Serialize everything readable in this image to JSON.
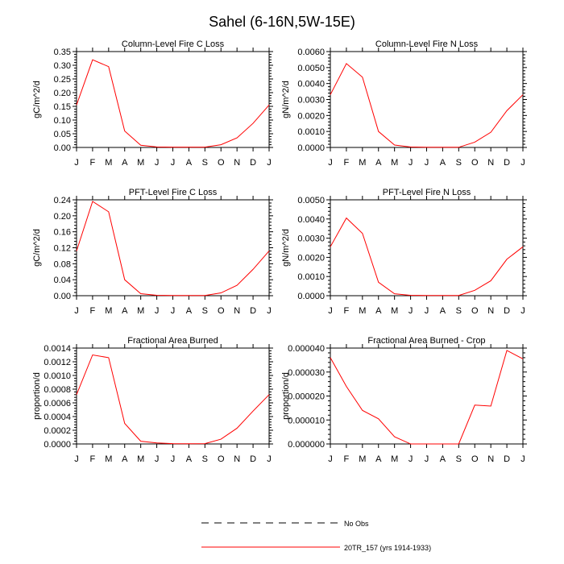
{
  "title": "Sahel (6-16N,5W-15E)",
  "months": [
    "J",
    "F",
    "M",
    "A",
    "M",
    "J",
    "J",
    "A",
    "S",
    "O",
    "N",
    "D",
    "J"
  ],
  "legend": [
    {
      "label": "No Obs",
      "style": "dashed",
      "color": "#000000"
    },
    {
      "label": "20TR_157 (yrs 1914-1933)",
      "style": "solid",
      "color": "#ff0000"
    }
  ],
  "line_color": "#ff0000",
  "chart_data": [
    {
      "type": "line",
      "title": "Column-Level Fire C Loss",
      "ylabel": "gC/m^2/d",
      "ylim": [
        0,
        0.35
      ],
      "yticks": [
        "0.00",
        "0.05",
        "0.10",
        "0.15",
        "0.20",
        "0.25",
        "0.30",
        "0.35"
      ],
      "tickvals": [
        0,
        0.05,
        0.1,
        0.15,
        0.2,
        0.25,
        0.3,
        0.35
      ],
      "series": [
        {
          "name": "20TR_157 (yrs 1914-1933)",
          "values": [
            0.155,
            0.32,
            0.295,
            0.06,
            0.008,
            0.002,
            0.001,
            0.001,
            0.001,
            0.01,
            0.035,
            0.088,
            0.155
          ]
        }
      ]
    },
    {
      "type": "line",
      "title": "Column-Level Fire N Loss",
      "ylabel": "gN/m^2/d",
      "ylim": [
        0,
        0.006
      ],
      "yticks": [
        "0.0000",
        "0.0010",
        "0.0020",
        "0.0030",
        "0.0040",
        "0.0050",
        "0.0060"
      ],
      "tickvals": [
        0,
        0.001,
        0.002,
        0.003,
        0.004,
        0.005,
        0.006
      ],
      "series": [
        {
          "name": "20TR_157 (yrs 1914-1933)",
          "values": [
            0.0033,
            0.00525,
            0.0044,
            0.001,
            0.00015,
            3e-05,
            1e-05,
            1e-05,
            1e-05,
            0.00033,
            0.00095,
            0.0023,
            0.0033
          ]
        }
      ]
    },
    {
      "type": "line",
      "title": "PFT-Level Fire C Loss",
      "ylabel": "gC/m^2/d",
      "ylim": [
        0,
        0.24
      ],
      "yticks": [
        "0.00",
        "0.04",
        "0.08",
        "0.12",
        "0.16",
        "0.20",
        "0.24"
      ],
      "tickvals": [
        0,
        0.04,
        0.08,
        0.12,
        0.16,
        0.2,
        0.24
      ],
      "series": [
        {
          "name": "20TR_157 (yrs 1914-1933)",
          "values": [
            0.112,
            0.236,
            0.21,
            0.04,
            0.005,
            0.001,
            0.0005,
            0.0005,
            0.0005,
            0.007,
            0.026,
            0.066,
            0.112
          ]
        }
      ]
    },
    {
      "type": "line",
      "title": "PFT-Level Fire N Loss",
      "ylabel": "gN/m^2/d",
      "ylim": [
        0,
        0.005
      ],
      "yticks": [
        "0.0000",
        "0.0010",
        "0.0020",
        "0.0030",
        "0.0040",
        "0.0050"
      ],
      "tickvals": [
        0,
        0.001,
        0.002,
        0.003,
        0.004,
        0.005
      ],
      "series": [
        {
          "name": "20TR_157 (yrs 1914-1933)",
          "values": [
            0.00255,
            0.00405,
            0.00325,
            0.0007,
            0.0001,
            2e-05,
            1e-05,
            1e-05,
            1e-05,
            0.00028,
            0.00078,
            0.0019,
            0.00255
          ]
        }
      ]
    },
    {
      "type": "line",
      "title": "Fractional Area Burned",
      "ylabel": "proportion/d",
      "ylim": [
        0,
        0.0014
      ],
      "yticks": [
        "0.0000",
        "0.0002",
        "0.0004",
        "0.0006",
        "0.0008",
        "0.0010",
        "0.0012",
        "0.0014"
      ],
      "tickvals": [
        0,
        0.0002,
        0.0004,
        0.0006,
        0.0008,
        0.001,
        0.0012,
        0.0014
      ],
      "series": [
        {
          "name": "20TR_157 (yrs 1914-1933)",
          "values": [
            0.00072,
            0.0013,
            0.00126,
            0.0003,
            4e-05,
            1.5e-05,
            5e-06,
            3e-06,
            5e-06,
            7e-05,
            0.00023,
            0.00048,
            0.00072
          ]
        }
      ]
    },
    {
      "type": "line",
      "title": "Fractional Area Burned - Crop",
      "ylabel": "proportion/d",
      "ylim": [
        0,
        4e-05
      ],
      "yticks": [
        "0.000000",
        "0.000010",
        "0.000020",
        "0.000030",
        "0.000040"
      ],
      "tickvals": [
        0,
        1e-05,
        2e-05,
        3e-05,
        4e-05
      ],
      "series": [
        {
          "name": "20TR_157 (yrs 1914-1933)",
          "values": [
            3.6e-05,
            2.4e-05,
            1.4e-05,
            1.05e-05,
            3e-06,
            0,
            0,
            0,
            0,
            1.62e-05,
            1.58e-05,
            3.9e-05,
            3.55e-05
          ]
        }
      ]
    }
  ]
}
